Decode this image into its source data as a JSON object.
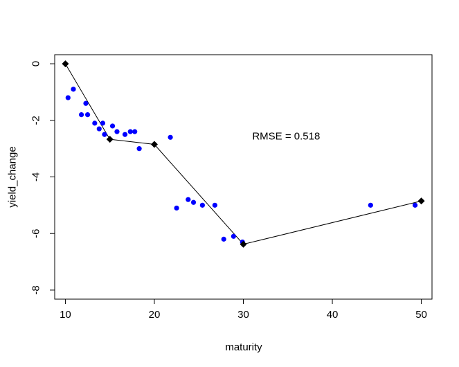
{
  "chart_data": {
    "type": "scatter",
    "title": "",
    "xlabel": "maturity",
    "ylabel": "yield_change",
    "xlim": [
      8.8,
      51.2
    ],
    "ylim": [
      -8.32,
      0.32
    ],
    "x_ticks": [
      10,
      20,
      30,
      40,
      50
    ],
    "y_ticks": [
      0,
      -2,
      -4,
      -6,
      -8
    ],
    "grid": false,
    "annotation": "RMSE = 0.518",
    "point_color": "#0000ff",
    "line_color": "#000000",
    "series": [
      {
        "kind": "points",
        "color": "#0000ff",
        "x": [
          10.3,
          10.9,
          11.8,
          12.3,
          12.5,
          13.3,
          13.8,
          14.2,
          14.4,
          15.3,
          15.8,
          16.7,
          17.3,
          17.8,
          18.3,
          21.8,
          22.5,
          23.8,
          24.4,
          25.4,
          26.8,
          27.8,
          28.9,
          29.9,
          44.3,
          49.3
        ],
        "y": [
          -1.2,
          -0.9,
          -1.8,
          -1.4,
          -1.8,
          -2.1,
          -2.3,
          -2.1,
          -2.5,
          -2.2,
          -2.4,
          -2.5,
          -2.4,
          -2.4,
          -3.0,
          -2.6,
          -5.1,
          -4.8,
          -4.9,
          -5.0,
          -5.0,
          -6.2,
          -6.1,
          -6.3,
          -5.0,
          -5.0
        ]
      },
      {
        "kind": "line",
        "color": "#000000",
        "markers": "diamond",
        "x": [
          10,
          15,
          20,
          30,
          50
        ],
        "y": [
          0,
          -2.67,
          -2.85,
          -6.38,
          -4.85
        ]
      }
    ]
  }
}
